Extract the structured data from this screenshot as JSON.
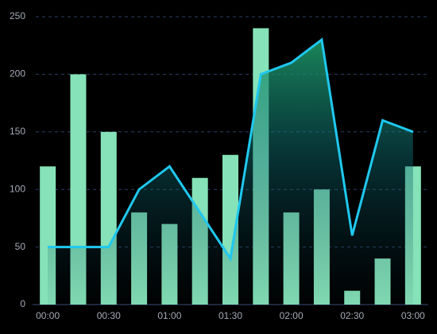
{
  "chart_data": {
    "type": "bar",
    "categories": [
      "00:00",
      null,
      "00:30",
      null,
      "01:00",
      null,
      "01:30",
      null,
      "02:00",
      null,
      "02:30",
      null,
      "03:00"
    ],
    "series": [
      {
        "type": "bar",
        "color": "#86e2b8",
        "values": [
          120,
          200,
          150,
          80,
          70,
          110,
          130,
          240,
          80,
          100,
          12,
          40,
          120
        ]
      },
      {
        "type": "line",
        "color": "#1fc8ef",
        "values": [
          50,
          50,
          50,
          100,
          120,
          80,
          40,
          200,
          210,
          230,
          60,
          160,
          150
        ]
      }
    ],
    "ylim": [
      0,
      250
    ],
    "yticks": [
      0,
      50,
      100,
      150,
      200,
      250
    ],
    "grid": true
  }
}
